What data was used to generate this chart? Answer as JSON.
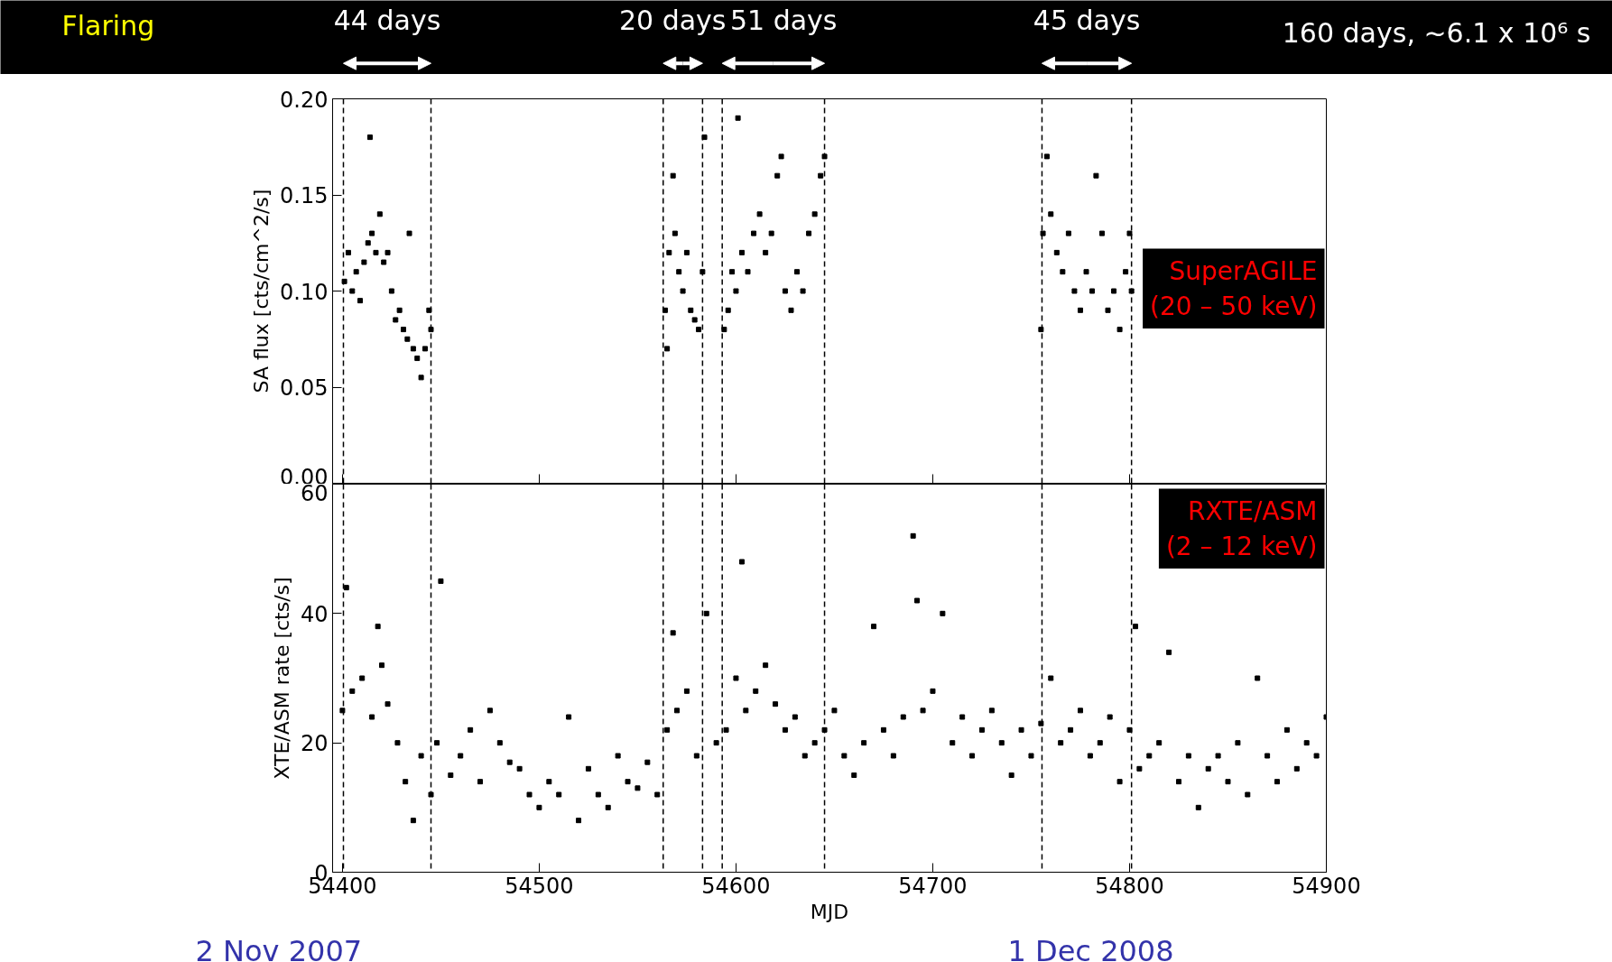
{
  "chart_data": [
    {
      "type": "scatter",
      "ylabel": "SA flux [cts/cm^2/s]",
      "marker": "square",
      "grid": false,
      "tick_labels": "y",
      "xlim": [
        54395,
        54900
      ],
      "xticks": [
        54400,
        54500,
        54600,
        54700,
        54800,
        54900
      ],
      "ylim": [
        0,
        0.2
      ],
      "yticks": [
        {
          "value": 0,
          "label": "0.00"
        },
        {
          "value": 0.05,
          "label": "0.05"
        },
        {
          "value": 0.1,
          "label": "0.10"
        },
        {
          "value": 0.15,
          "label": "0.15"
        },
        {
          "value": 0.2,
          "label": "0.20"
        }
      ],
      "series": [
        {
          "color": "#000000",
          "x": [
            54401,
            54403,
            54405,
            54407,
            54409,
            54411,
            54413,
            54414,
            54415,
            54417,
            54419,
            54421,
            54423,
            54425,
            54427,
            54429,
            54431,
            54433,
            54434,
            54436,
            54438,
            54440,
            54442,
            54444,
            54445,
            54564,
            54565,
            54566,
            54568,
            54569,
            54571,
            54573,
            54575,
            54577,
            54579,
            54581,
            54583,
            54584,
            54594,
            54596,
            54598,
            54600,
            54601,
            54603,
            54606,
            54609,
            54612,
            54615,
            54618,
            54621,
            54623,
            54625,
            54628,
            54631,
            54634,
            54637,
            54640,
            54643,
            54645,
            54755,
            54756,
            54758,
            54760,
            54763,
            54766,
            54769,
            54772,
            54775,
            54778,
            54781,
            54783,
            54786,
            54789,
            54792,
            54795,
            54798,
            54800,
            54801
          ],
          "values": [
            0.105,
            0.12,
            0.1,
            0.11,
            0.095,
            0.115,
            0.125,
            0.18,
            0.13,
            0.12,
            0.14,
            0.115,
            0.12,
            0.1,
            0.085,
            0.09,
            0.08,
            0.075,
            0.13,
            0.07,
            0.065,
            0.055,
            0.07,
            0.09,
            0.08,
            0.09,
            0.07,
            0.12,
            0.16,
            0.13,
            0.11,
            0.1,
            0.12,
            0.09,
            0.085,
            0.08,
            0.11,
            0.18,
            0.08,
            0.09,
            0.11,
            0.1,
            0.19,
            0.12,
            0.11,
            0.13,
            0.14,
            0.12,
            0.13,
            0.16,
            0.17,
            0.1,
            0.09,
            0.11,
            0.1,
            0.13,
            0.14,
            0.16,
            0.17,
            0.08,
            0.13,
            0.17,
            0.14,
            0.12,
            0.11,
            0.13,
            0.1,
            0.09,
            0.11,
            0.1,
            0.16,
            0.13,
            0.09,
            0.1,
            0.08,
            0.11,
            0.13,
            0.1
          ]
        }
      ],
      "ref_lines": [
        {
          "axis": "x",
          "value": 54400.5,
          "line_style": "dashed"
        },
        {
          "axis": "x",
          "value": 54445,
          "line_style": "dashed"
        },
        {
          "axis": "x",
          "value": 54563,
          "line_style": "dashed"
        },
        {
          "axis": "x",
          "value": 54583,
          "line_style": "dashed"
        },
        {
          "axis": "x",
          "value": 54593,
          "line_style": "dashed"
        },
        {
          "axis": "x",
          "value": 54645,
          "line_style": "dashed"
        },
        {
          "axis": "x",
          "value": 54755.5,
          "line_style": "dashed"
        },
        {
          "axis": "x",
          "value": 54801,
          "line_style": "dashed"
        }
      ],
      "annotations": [
        "Flaring",
        "44 days",
        "20 days",
        "51 days",
        "45 days",
        "160 days, ~6.1 x 10⁶ s",
        "SuperAGILE\n(20 – 50 keV)"
      ]
    },
    {
      "type": "scatter",
      "xlabel": "MJD",
      "ylabel": "XTE/ASM rate [cts/s]",
      "marker": "square",
      "grid": false,
      "xlim": [
        54395,
        54900
      ],
      "xticks": [
        54400,
        54500,
        54600,
        54700,
        54800,
        54900
      ],
      "ylim": [
        0,
        60
      ],
      "yticks": [
        0,
        20,
        40,
        60
      ],
      "series": [
        {
          "color": "#000000",
          "x": [
            54400,
            54402,
            54405,
            54410,
            54415,
            54418,
            54420,
            54423,
            54428,
            54432,
            54436,
            54440,
            54445,
            54448,
            54450,
            54455,
            54460,
            54465,
            54470,
            54475,
            54480,
            54485,
            54490,
            54495,
            54500,
            54505,
            54510,
            54515,
            54520,
            54525,
            54530,
            54535,
            54540,
            54545,
            54550,
            54555,
            54560,
            54565,
            54568,
            54570,
            54575,
            54580,
            54585,
            54590,
            54595,
            54600,
            54603,
            54605,
            54610,
            54615,
            54620,
            54625,
            54630,
            54635,
            54640,
            54645,
            54650,
            54655,
            54660,
            54665,
            54670,
            54675,
            54680,
            54685,
            54690,
            54692,
            54695,
            54700,
            54705,
            54710,
            54715,
            54720,
            54725,
            54730,
            54735,
            54740,
            54745,
            54750,
            54755,
            54760,
            54765,
            54770,
            54775,
            54780,
            54785,
            54790,
            54795,
            54800,
            54803,
            54805,
            54810,
            54815,
            54820,
            54825,
            54830,
            54835,
            54840,
            54845,
            54850,
            54855,
            54860,
            54865,
            54870,
            54875,
            54880,
            54885,
            54890,
            54895,
            54900
          ],
          "values": [
            25,
            44,
            28,
            30,
            24,
            38,
            32,
            26,
            20,
            14,
            8,
            18,
            12,
            20,
            45,
            15,
            18,
            22,
            14,
            25,
            20,
            17,
            16,
            12,
            10,
            14,
            12,
            24,
            8,
            16,
            12,
            10,
            18,
            14,
            13,
            17,
            12,
            22,
            37,
            25,
            28,
            18,
            40,
            20,
            22,
            30,
            48,
            25,
            28,
            32,
            26,
            22,
            24,
            18,
            20,
            22,
            25,
            18,
            15,
            20,
            38,
            22,
            18,
            24,
            52,
            42,
            25,
            28,
            40,
            20,
            24,
            18,
            22,
            25,
            20,
            15,
            22,
            18,
            23,
            30,
            20,
            22,
            25,
            18,
            20,
            24,
            14,
            22,
            38,
            16,
            18,
            20,
            34,
            14,
            18,
            10,
            16,
            18,
            14,
            20,
            12,
            30,
            18,
            14,
            22,
            16,
            20,
            18,
            24
          ]
        }
      ],
      "ref_lines": [
        {
          "axis": "x",
          "value": 54400.5,
          "line_style": "dashed"
        },
        {
          "axis": "x",
          "value": 54445,
          "line_style": "dashed"
        },
        {
          "axis": "x",
          "value": 54563,
          "line_style": "dashed"
        },
        {
          "axis": "x",
          "value": 54583,
          "line_style": "dashed"
        },
        {
          "axis": "x",
          "value": 54593,
          "line_style": "dashed"
        },
        {
          "axis": "x",
          "value": 54645,
          "line_style": "dashed"
        },
        {
          "axis": "x",
          "value": 54755.5,
          "line_style": "dashed"
        },
        {
          "axis": "x",
          "value": 54801,
          "line_style": "dashed"
        }
      ],
      "annotations": [
        "RXTE/ASM\n(2 – 12 keV)",
        "2 Nov 2007",
        "1 Dec 2008"
      ]
    }
  ]
}
